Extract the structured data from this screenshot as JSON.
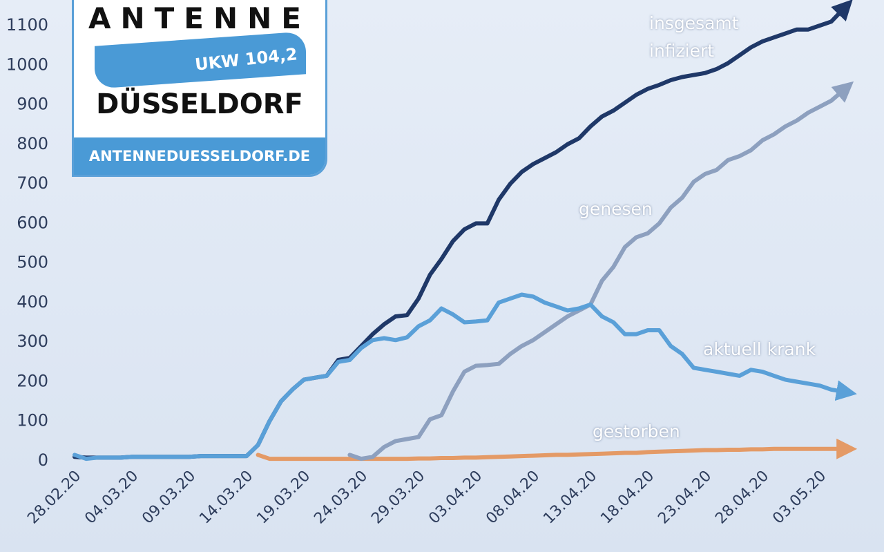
{
  "chart_data": {
    "type": "line",
    "categories": [
      "28.02.20",
      null,
      null,
      null,
      null,
      "04.03.20",
      null,
      null,
      null,
      null,
      "09.03.20",
      null,
      null,
      null,
      null,
      "14.03.20",
      null,
      null,
      null,
      null,
      "19.03.20",
      null,
      null,
      null,
      null,
      "24.03.20",
      null,
      null,
      null,
      null,
      "29.03.20",
      null,
      null,
      null,
      null,
      "03.04.20",
      null,
      null,
      null,
      null,
      "08.04.20",
      null,
      null,
      null,
      null,
      "13.04.20",
      null,
      null,
      null,
      null,
      "18.04.20",
      null,
      null,
      null,
      null,
      "23.04.20",
      null,
      null,
      null,
      null,
      "28.04.20",
      null,
      null,
      null,
      null,
      "03.05.20",
      null,
      null
    ],
    "series": [
      {
        "name": "gestorben",
        "color": "#e49a66",
        "values": [
          null,
          null,
          null,
          null,
          null,
          null,
          null,
          null,
          null,
          null,
          null,
          null,
          null,
          null,
          null,
          null,
          15,
          5,
          5,
          5,
          5,
          5,
          5,
          5,
          5,
          5,
          5,
          5,
          5,
          5,
          6,
          6,
          7,
          7,
          8,
          8,
          9,
          10,
          11,
          12,
          13,
          14,
          15,
          15,
          16,
          17,
          18,
          19,
          20,
          20,
          22,
          23,
          24,
          25,
          26,
          27,
          27,
          28,
          28,
          29,
          29,
          30,
          30,
          30,
          30,
          30,
          30,
          30
        ]
      },
      {
        "name": "genesen",
        "color": "#8da0bf",
        "values": [
          null,
          null,
          null,
          null,
          null,
          null,
          null,
          null,
          null,
          null,
          null,
          null,
          null,
          null,
          null,
          null,
          null,
          null,
          null,
          null,
          null,
          null,
          null,
          null,
          15,
          5,
          10,
          35,
          50,
          55,
          60,
          105,
          115,
          175,
          225,
          240,
          242,
          245,
          270,
          290,
          305,
          325,
          345,
          365,
          380,
          395,
          455,
          490,
          540,
          565,
          575,
          600,
          640,
          665,
          705,
          725,
          735,
          760,
          770,
          785,
          810,
          825,
          845,
          860,
          880,
          895,
          910,
          935
        ]
      },
      {
        "name": "insgesamt infiziert",
        "color": "#1f3868",
        "values": [
          10,
          8,
          8,
          8,
          8,
          10,
          10,
          10,
          10,
          10,
          10,
          12,
          12,
          12,
          12,
          12,
          40,
          100,
          150,
          180,
          205,
          210,
          215,
          255,
          260,
          290,
          320,
          345,
          365,
          368,
          410,
          470,
          510,
          555,
          585,
          600,
          600,
          660,
          700,
          730,
          750,
          765,
          780,
          800,
          815,
          845,
          870,
          885,
          905,
          925,
          940,
          950,
          962,
          970,
          975,
          980,
          990,
          1005,
          1025,
          1045,
          1060,
          1070,
          1080,
          1090,
          1090,
          1100,
          1110,
          1140
        ]
      },
      {
        "name": "aktuell krank",
        "color": "#5aa0d8",
        "values": [
          15,
          5,
          8,
          8,
          8,
          10,
          10,
          10,
          10,
          10,
          10,
          12,
          12,
          12,
          12,
          12,
          40,
          100,
          150,
          180,
          205,
          210,
          215,
          250,
          255,
          285,
          305,
          310,
          305,
          312,
          340,
          355,
          385,
          370,
          350,
          352,
          355,
          400,
          410,
          420,
          415,
          400,
          390,
          380,
          385,
          395,
          365,
          350,
          320,
          320,
          330,
          330,
          290,
          270,
          235,
          230,
          225,
          220,
          215,
          230,
          225,
          215,
          205,
          200,
          195,
          190,
          180,
          175
        ]
      }
    ],
    "ylim": [
      0,
      1100
    ],
    "yticks": [
      0,
      100,
      200,
      300,
      400,
      500,
      600,
      700,
      800,
      900,
      1000,
      1100
    ]
  },
  "logo": {
    "top": "ANTENNE",
    "band": "UKW 104,2",
    "city": "DÜSSELDORF",
    "url": "ANTENNEDUESSELDORF.DE"
  }
}
